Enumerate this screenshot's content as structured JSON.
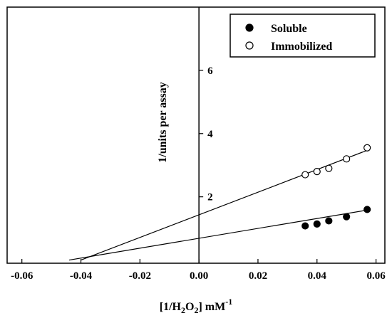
{
  "chart_data": {
    "type": "scatter",
    "xlabel_parts": [
      "[1/H",
      "2",
      "O",
      "2",
      "] mM",
      "-1"
    ],
    "ylabel": "1/units per assay",
    "xlim": [
      -0.065,
      0.063
    ],
    "ylim": [
      -0.1,
      8.0
    ],
    "x_ticks": [
      -0.06,
      -0.04,
      -0.02,
      0.0,
      0.02,
      0.04,
      0.06
    ],
    "x_tick_labels": [
      "-0.06",
      "-0.04",
      "-0.02",
      "0.00",
      "0.02",
      "0.04",
      "0.06"
    ],
    "y_ticks": [
      2,
      4,
      6
    ],
    "y_tick_labels": [
      "2",
      "4",
      "6"
    ],
    "legend_position": "top-right",
    "series": [
      {
        "name": "Soluble",
        "marker": "filled-circle",
        "x": [
          0.036,
          0.04,
          0.044,
          0.05,
          0.057
        ],
        "y": [
          1.08,
          1.14,
          1.24,
          1.37,
          1.6
        ],
        "fit_line": {
          "x": [
            -0.044,
            0.057
          ],
          "y": [
            0.0,
            1.58
          ]
        }
      },
      {
        "name": "Immobilized",
        "marker": "open-circle",
        "x": [
          0.036,
          0.04,
          0.044,
          0.05,
          0.057
        ],
        "y": [
          2.7,
          2.8,
          2.9,
          3.2,
          3.55
        ],
        "fit_line": {
          "x": [
            -0.04,
            0.057
          ],
          "y": [
            0.0,
            3.47
          ]
        }
      }
    ]
  }
}
